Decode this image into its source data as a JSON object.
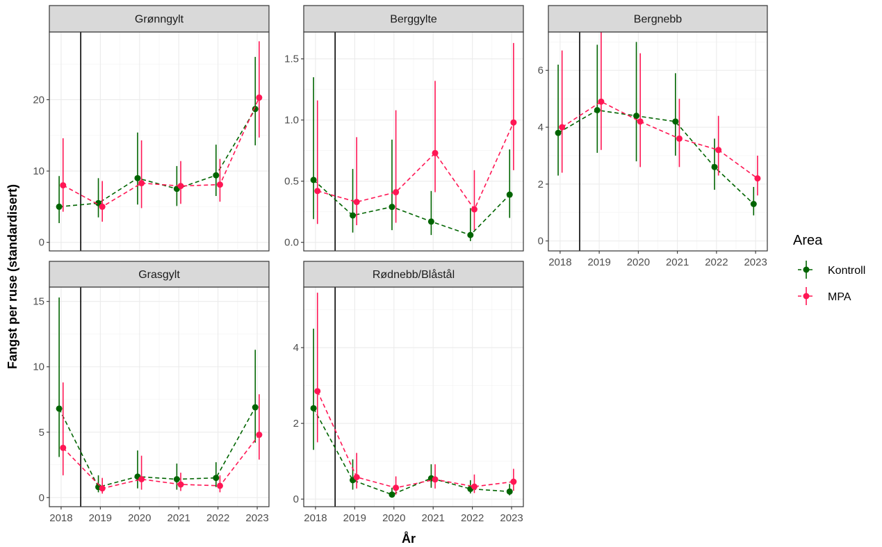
{
  "chart_data": {
    "type": "line",
    "xlabel": "År",
    "ylabel": "Fangst per ruse (standardisert)",
    "x": [
      2018,
      2019,
      2020,
      2021,
      2022,
      2023
    ],
    "x_tick_labels": [
      "2018",
      "2019",
      "2020",
      "2021",
      "2022",
      "2023"
    ],
    "vertical_reference_line_x": 2018.5,
    "grid": true,
    "legend": {
      "title": "Area",
      "placement": "right",
      "entries": [
        {
          "name": "Kontroll",
          "color": "#006400",
          "linestyle": "dashed"
        },
        {
          "name": "MPA",
          "color": "#FF1654",
          "linestyle": "dashed"
        }
      ]
    },
    "facets": [
      {
        "title": "Grønngylt",
        "ylim": [
          -1.2,
          29.5
        ],
        "y_ticks": [
          0,
          10,
          20
        ],
        "series": [
          {
            "name": "Kontroll",
            "values": [
              5.0,
              5.5,
              9.0,
              7.5,
              9.4,
              18.7
            ],
            "lower": [
              2.7,
              3.5,
              5.3,
              5.1,
              6.5,
              13.6
            ],
            "upper": [
              9.3,
              9.0,
              15.4,
              10.7,
              13.7,
              26.0
            ]
          },
          {
            "name": "MPA",
            "values": [
              8.0,
              5.0,
              8.3,
              7.9,
              8.1,
              20.3
            ],
            "lower": [
              4.3,
              2.9,
              4.8,
              5.4,
              5.7,
              14.7
            ],
            "upper": [
              14.6,
              8.6,
              14.3,
              11.4,
              11.7,
              28.2
            ]
          }
        ]
      },
      {
        "title": "Berggylte",
        "ylim": [
          -0.07,
          1.72
        ],
        "y_ticks": [
          0.0,
          0.5,
          1.0,
          1.5
        ],
        "y_tick_labels": [
          "0.0",
          "0.5",
          "1.0",
          "1.5"
        ],
        "series": [
          {
            "name": "Kontroll",
            "values": [
              0.51,
              0.22,
              0.29,
              0.17,
              0.06,
              0.39
            ],
            "lower": [
              0.19,
              0.08,
              0.1,
              0.06,
              0.01,
              0.2
            ],
            "upper": [
              1.35,
              0.6,
              0.84,
              0.42,
              0.28,
              0.76
            ]
          },
          {
            "name": "MPA",
            "values": [
              0.42,
              0.33,
              0.41,
              0.73,
              0.27,
              0.98
            ],
            "lower": [
              0.15,
              0.14,
              0.16,
              0.41,
              0.1,
              0.59
            ],
            "upper": [
              1.16,
              0.86,
              1.08,
              1.32,
              0.59,
              1.63
            ]
          }
        ]
      },
      {
        "title": "Bergnebb",
        "ylim": [
          -0.35,
          7.35
        ],
        "y_ticks": [
          0,
          2,
          4,
          6
        ],
        "series": [
          {
            "name": "Kontroll",
            "values": [
              3.8,
              4.6,
              4.4,
              4.2,
              2.6,
              1.3
            ],
            "lower": [
              2.3,
              3.1,
              2.8,
              3.0,
              1.8,
              0.9
            ],
            "upper": [
              6.2,
              6.9,
              7.0,
              5.9,
              3.6,
              1.9
            ]
          },
          {
            "name": "MPA",
            "values": [
              4.0,
              4.9,
              4.2,
              3.6,
              3.2,
              2.2
            ],
            "lower": [
              2.4,
              3.2,
              2.6,
              2.6,
              2.3,
              1.6
            ],
            "upper": [
              6.7,
              7.4,
              6.6,
              5.0,
              4.4,
              3.0
            ]
          }
        ]
      },
      {
        "title": "Grasgylt",
        "ylim": [
          -0.7,
          16.1
        ],
        "y_ticks": [
          0,
          5,
          10,
          15
        ],
        "series": [
          {
            "name": "Kontroll",
            "values": [
              6.8,
              0.8,
              1.6,
              1.4,
              1.5,
              6.9
            ],
            "lower": [
              3.1,
              0.4,
              0.7,
              0.6,
              0.8,
              4.2
            ],
            "upper": [
              15.3,
              1.7,
              3.6,
              2.6,
              2.7,
              11.3
            ]
          },
          {
            "name": "MPA",
            "values": [
              3.8,
              0.7,
              1.4,
              1.0,
              0.9,
              4.8
            ],
            "lower": [
              1.7,
              0.3,
              0.6,
              0.5,
              0.4,
              2.9
            ],
            "upper": [
              8.8,
              1.5,
              3.2,
              1.9,
              1.7,
              7.9
            ]
          }
        ]
      },
      {
        "title": "Rødnebb/Blåstål",
        "ylim": [
          -0.2,
          5.6
        ],
        "y_ticks": [
          0,
          2,
          4
        ],
        "series": [
          {
            "name": "Kontroll",
            "values": [
              2.4,
              0.5,
              0.12,
              0.55,
              0.27,
              0.2
            ],
            "lower": [
              1.3,
              0.25,
              0.05,
              0.3,
              0.15,
              0.1
            ],
            "upper": [
              4.5,
              1.05,
              0.3,
              0.92,
              0.5,
              0.4
            ]
          },
          {
            "name": "MPA",
            "values": [
              2.85,
              0.58,
              0.3,
              0.52,
              0.33,
              0.46
            ],
            "lower": [
              1.5,
              0.28,
              0.12,
              0.28,
              0.16,
              0.22
            ],
            "upper": [
              5.45,
              1.22,
              0.6,
              0.92,
              0.65,
              0.8
            ]
          }
        ]
      }
    ]
  }
}
